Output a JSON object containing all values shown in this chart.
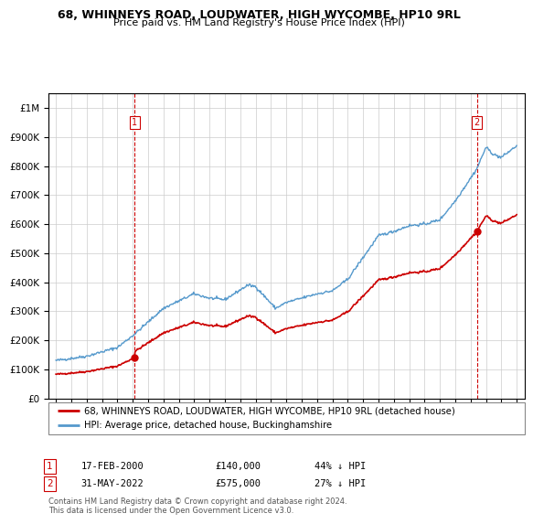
{
  "title": "68, WHINNEYS ROAD, LOUDWATER, HIGH WYCOMBE, HP10 9RL",
  "subtitle": "Price paid vs. HM Land Registry's House Price Index (HPI)",
  "legend_house": "68, WHINNEYS ROAD, LOUDWATER, HIGH WYCOMBE, HP10 9RL (detached house)",
  "legend_hpi": "HPI: Average price, detached house, Buckinghamshire",
  "footnote": "Contains HM Land Registry data © Crown copyright and database right 2024.\nThis data is licensed under the Open Government Licence v3.0.",
  "sale1_date": "17-FEB-2000",
  "sale1_price": "£140,000",
  "sale1_hpi": "44% ↓ HPI",
  "sale2_date": "31-MAY-2022",
  "sale2_price": "£575,000",
  "sale2_hpi": "27% ↓ HPI",
  "house_color": "#cc0000",
  "hpi_color": "#5599cc",
  "sale1_x": 2000.12,
  "sale1_y": 140000,
  "sale2_x": 2022.41,
  "sale2_y": 575000,
  "ylim_max": 1050000,
  "xlim_min": 1994.5,
  "xlim_max": 2025.5,
  "yticks": [
    0,
    100000,
    200000,
    300000,
    400000,
    500000,
    600000,
    700000,
    800000,
    900000,
    1000000
  ],
  "xticks": [
    1995,
    1996,
    1997,
    1998,
    1999,
    2000,
    2001,
    2002,
    2003,
    2004,
    2005,
    2006,
    2007,
    2008,
    2009,
    2010,
    2011,
    2012,
    2013,
    2014,
    2015,
    2016,
    2017,
    2018,
    2019,
    2020,
    2021,
    2022,
    2023,
    2024,
    2025
  ]
}
